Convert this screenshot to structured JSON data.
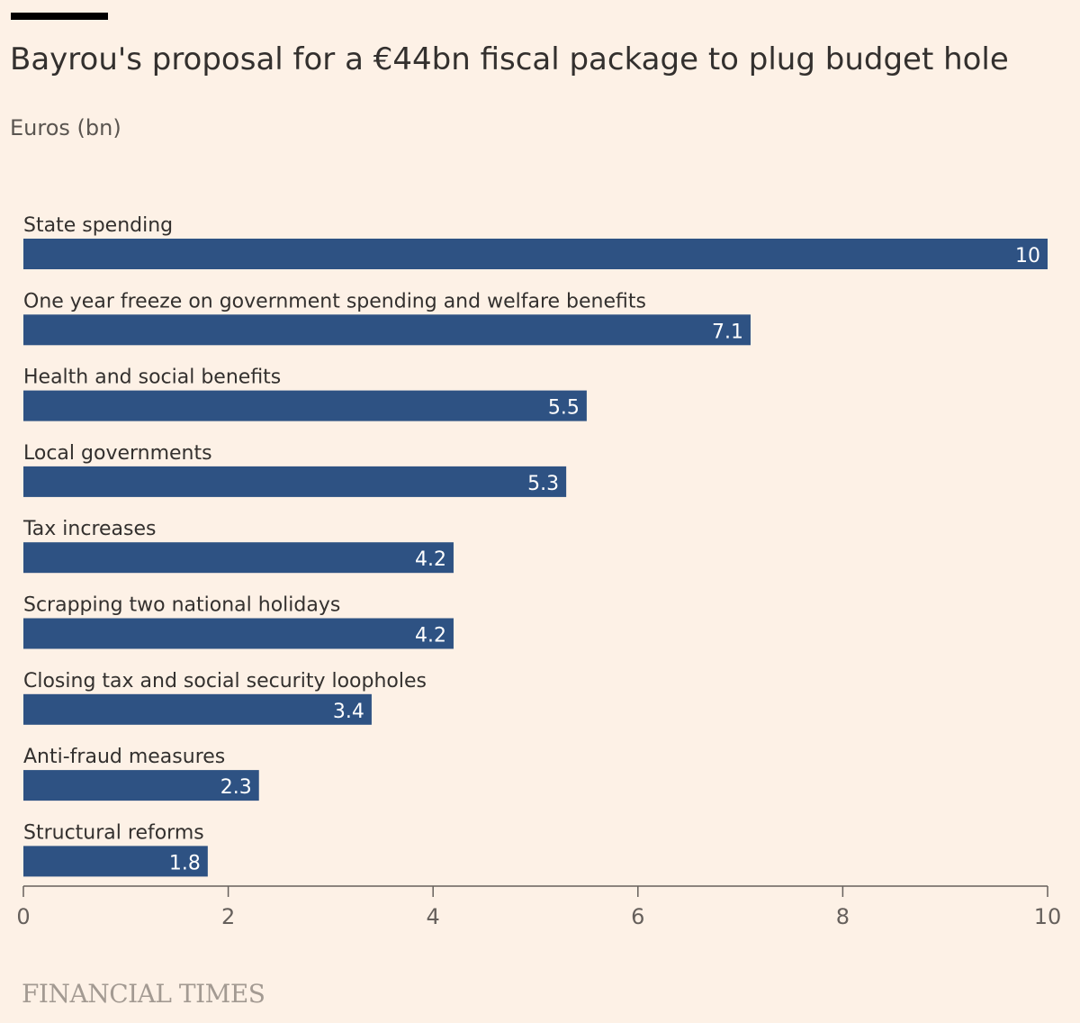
{
  "header": {
    "title": "Bayrou's proposal for a €44bn fiscal package to plug budget hole",
    "subtitle": "Euros (bn)"
  },
  "footer": {
    "source": "FINANCIAL TIMES"
  },
  "colors": {
    "background": "#FDF1E6",
    "bar": "#2E5283",
    "axis": "#66605C"
  },
  "chart_data": {
    "type": "bar",
    "orientation": "horizontal",
    "title": "Bayrou's proposal for a €44bn fiscal package to plug budget hole",
    "xlabel": "",
    "ylabel": "Euros (bn)",
    "xlim": [
      0,
      10
    ],
    "xticks": [
      0,
      2,
      4,
      6,
      8,
      10
    ],
    "grid": false,
    "legend": "none",
    "categories": [
      "State spending",
      "One year freeze on government spending and welfare benefits",
      "Health and social benefits",
      "Local governments",
      "Tax increases",
      "Scrapping two national holidays",
      "Closing tax and social security loopholes",
      "Anti-fraud measures",
      "Structural reforms"
    ],
    "values": [
      10,
      7.1,
      5.5,
      5.3,
      4.2,
      4.2,
      3.4,
      2.3,
      1.8
    ],
    "value_labels": [
      "10",
      "7.1",
      "5.5",
      "5.3",
      "4.2",
      "4.2",
      "3.4",
      "2.3",
      "1.8"
    ]
  }
}
